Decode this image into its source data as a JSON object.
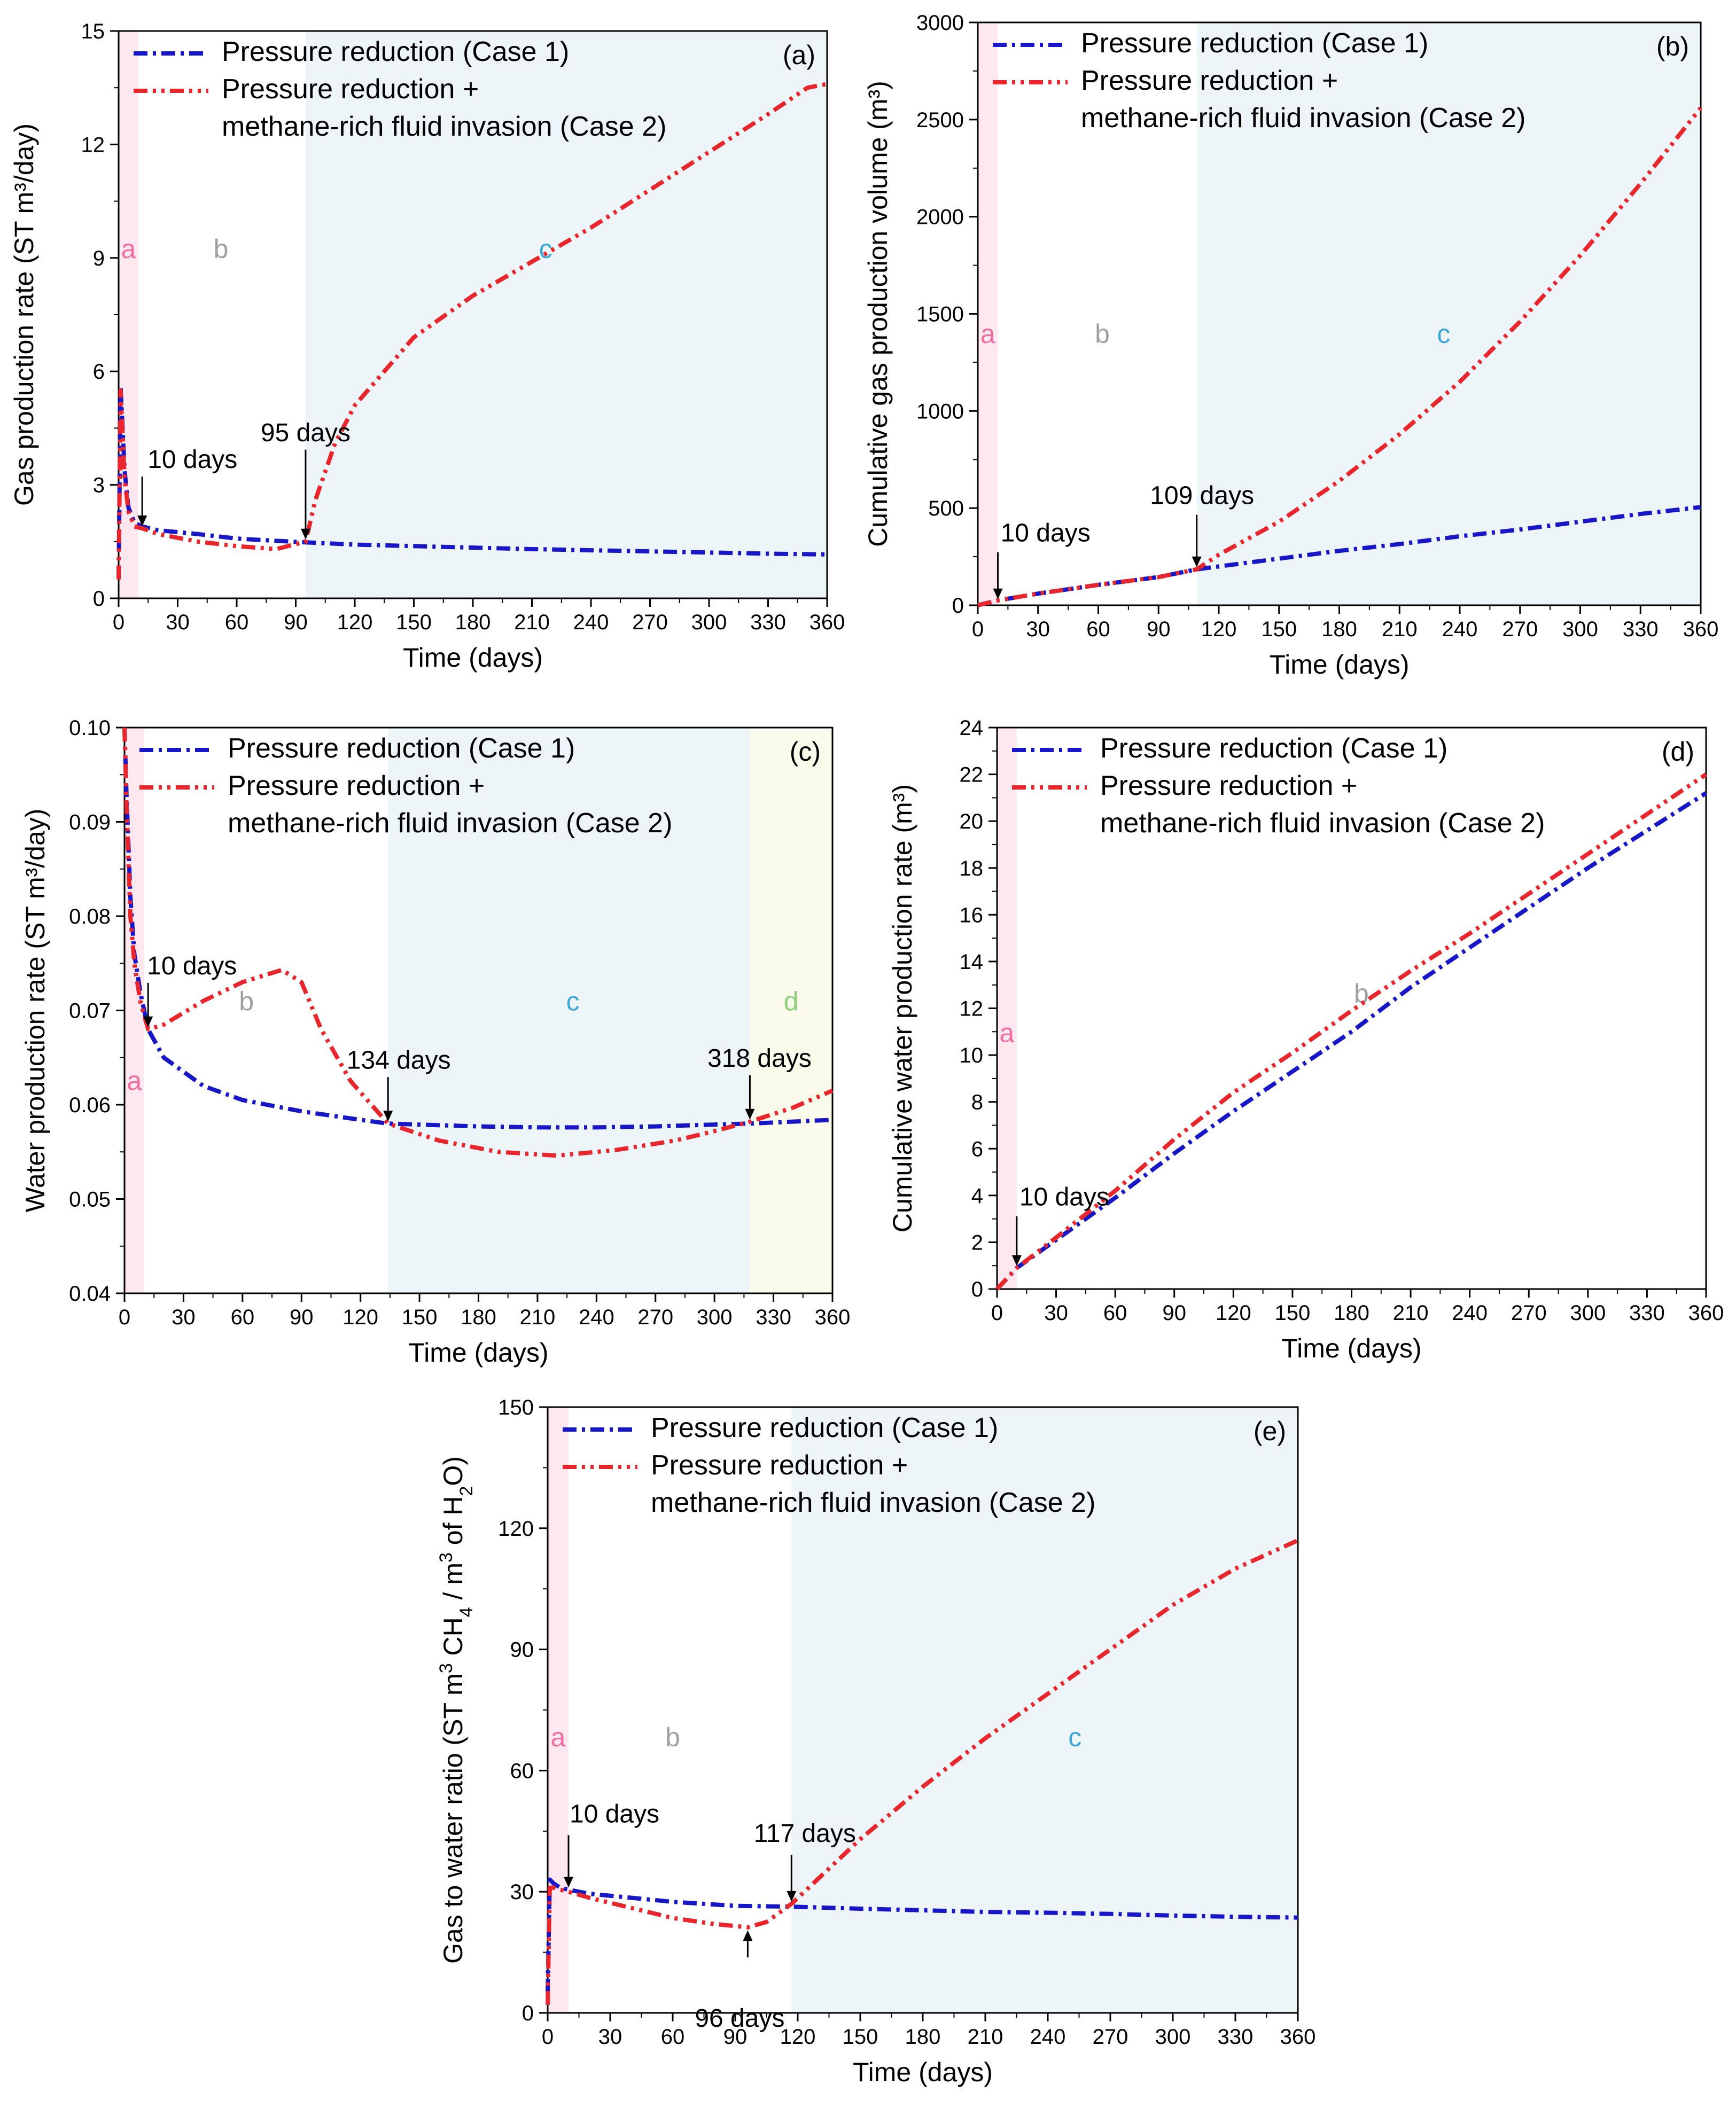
{
  "colors": {
    "case1": "#1717c8",
    "case2": "#e8262b",
    "region_a_fill": "#fde8f0",
    "region_c_fill": "#eef5f9",
    "region_d_fill": "#fbfbec",
    "region_a_text": "#f06ea0",
    "region_b_text": "#a0a0a0",
    "region_c_text": "#3fa7d8",
    "region_d_text": "#8bcf7a"
  },
  "legend": {
    "case1": "Pressure reduction (Case 1)",
    "case2_line1": "Pressure reduction +",
    "case2_line2": "methane-rich fluid invasion (Case 2)"
  },
  "chart_data": [
    {
      "id": "a",
      "type": "line",
      "panel_label": "(a)",
      "xlabel": "Time (days)",
      "ylabel": "Gas production rate (ST m³/day)",
      "xlim": [
        0,
        360
      ],
      "ylim": [
        0,
        15
      ],
      "xticks": [
        "0",
        "30",
        "60",
        "90",
        "120",
        "150",
        "180",
        "210",
        "240",
        "270",
        "300",
        "330",
        "360"
      ],
      "yticks": [
        "0",
        "3",
        "6",
        "9",
        "12",
        "15"
      ],
      "regions": [
        {
          "label": "a",
          "x0": 0,
          "x1": 10
        },
        {
          "label": "b",
          "x0": 10,
          "x1": 95
        },
        {
          "label": "c",
          "x0": 95,
          "x1": 360
        }
      ],
      "annotations": [
        {
          "text": "10 days",
          "x": 12,
          "y": 1.85
        },
        {
          "text": "95 days",
          "x": 95,
          "y": 1.5
        }
      ],
      "series": [
        {
          "name": "Pressure reduction (Case 1)",
          "x": [
            0,
            1,
            3,
            5,
            8,
            12,
            20,
            40,
            60,
            80,
            95,
            120,
            150,
            180,
            210,
            240,
            270,
            300,
            330,
            360
          ],
          "y": [
            0.5,
            5.6,
            3.4,
            2.4,
            2.0,
            1.9,
            1.8,
            1.7,
            1.58,
            1.52,
            1.48,
            1.42,
            1.38,
            1.34,
            1.3,
            1.27,
            1.24,
            1.21,
            1.18,
            1.16
          ]
        },
        {
          "name": "Pressure reduction + methane-rich fluid invasion (Case 2)",
          "x": [
            0,
            1,
            3,
            5,
            8,
            12,
            20,
            40,
            60,
            80,
            95,
            100,
            110,
            120,
            150,
            180,
            210,
            240,
            270,
            300,
            330,
            350,
            360
          ],
          "y": [
            0.5,
            5.5,
            3.2,
            2.3,
            1.9,
            1.85,
            1.7,
            1.5,
            1.38,
            1.3,
            1.5,
            2.6,
            4.1,
            5.1,
            6.9,
            8.0,
            8.9,
            9.8,
            10.8,
            11.8,
            12.8,
            13.5,
            13.6
          ]
        }
      ]
    },
    {
      "id": "b",
      "type": "line",
      "panel_label": "(b)",
      "xlabel": "Time (days)",
      "ylabel": "Cumulative gas production volume (m³)",
      "xlim": [
        0,
        360
      ],
      "ylim": [
        0,
        3000
      ],
      "xticks": [
        "0",
        "30",
        "60",
        "90",
        "120",
        "150",
        "180",
        "210",
        "240",
        "270",
        "300",
        "330",
        "360"
      ],
      "yticks": [
        "0",
        "500",
        "1000",
        "1500",
        "2000",
        "2500",
        "3000"
      ],
      "regions": [
        {
          "label": "a",
          "x0": 0,
          "x1": 10
        },
        {
          "label": "b",
          "x0": 10,
          "x1": 109
        },
        {
          "label": "c",
          "x0": 109,
          "x1": 360
        }
      ],
      "annotations": [
        {
          "text": "10 days",
          "x": 10,
          "y": 20
        },
        {
          "text": "109 days",
          "x": 109,
          "y": 185
        }
      ],
      "series": [
        {
          "name": "Pressure reduction (Case 1)",
          "x": [
            0,
            10,
            30,
            60,
            90,
            109,
            150,
            180,
            210,
            240,
            270,
            300,
            330,
            360
          ],
          "y": [
            0,
            25,
            60,
            105,
            145,
            185,
            240,
            280,
            315,
            355,
            390,
            430,
            470,
            505
          ]
        },
        {
          "name": "Pressure reduction + methane-rich fluid invasion (Case 2)",
          "x": [
            0,
            10,
            30,
            60,
            90,
            109,
            120,
            150,
            180,
            210,
            240,
            270,
            300,
            330,
            360
          ],
          "y": [
            0,
            25,
            60,
            105,
            145,
            185,
            260,
            430,
            640,
            880,
            1150,
            1460,
            1800,
            2170,
            2560
          ]
        }
      ]
    },
    {
      "id": "c",
      "type": "line",
      "panel_label": "(c)",
      "xlabel": "Time (days)",
      "ylabel": "Water production rate (ST m³/day)",
      "xlim": [
        0,
        360
      ],
      "ylim": [
        0.04,
        0.1
      ],
      "xticks": [
        "0",
        "30",
        "60",
        "90",
        "120",
        "150",
        "180",
        "210",
        "240",
        "270",
        "300",
        "330",
        "360"
      ],
      "yticks": [
        "0.04",
        "0.05",
        "0.06",
        "0.07",
        "0.08",
        "0.09",
        "0.10"
      ],
      "regions": [
        {
          "label": "a",
          "x0": 0,
          "x1": 10
        },
        {
          "label": "b",
          "x0": 10,
          "x1": 134
        },
        {
          "label": "c",
          "x0": 134,
          "x1": 318
        },
        {
          "label": "d",
          "x0": 318,
          "x1": 360
        }
      ],
      "annotations": [
        {
          "text": "10 days",
          "x": 12,
          "y": 0.068
        },
        {
          "text": "134 days",
          "x": 134,
          "y": 0.058
        },
        {
          "text": "318 days",
          "x": 318,
          "y": 0.0582
        }
      ],
      "series": [
        {
          "name": "Pressure reduction (Case 1)",
          "x": [
            0,
            1,
            3,
            5,
            8,
            12,
            20,
            40,
            60,
            90,
            120,
            134,
            180,
            210,
            240,
            270,
            300,
            318,
            360
          ],
          "y": [
            0.1,
            0.093,
            0.082,
            0.076,
            0.072,
            0.068,
            0.065,
            0.062,
            0.0605,
            0.0593,
            0.0584,
            0.058,
            0.0577,
            0.0576,
            0.0576,
            0.0577,
            0.0579,
            0.058,
            0.0584
          ]
        },
        {
          "name": "Pressure reduction + methane-rich fluid invasion (Case 2)",
          "x": [
            0,
            1,
            3,
            5,
            8,
            12,
            20,
            40,
            60,
            80,
            90,
            100,
            115,
            134,
            160,
            190,
            220,
            250,
            280,
            300,
            318,
            340,
            360
          ],
          "y": [
            0.1,
            0.092,
            0.08,
            0.075,
            0.071,
            0.068,
            0.0685,
            0.071,
            0.073,
            0.0743,
            0.073,
            0.068,
            0.0625,
            0.058,
            0.0562,
            0.055,
            0.0546,
            0.0552,
            0.0562,
            0.0572,
            0.0582,
            0.0597,
            0.0615
          ]
        }
      ]
    },
    {
      "id": "d",
      "type": "line",
      "panel_label": "(d)",
      "xlabel": "Time (days)",
      "ylabel": "Cumulative water production rate (m³)",
      "xlim": [
        0,
        360
      ],
      "ylim": [
        0,
        24
      ],
      "xticks": [
        "0",
        "30",
        "60",
        "90",
        "120",
        "150",
        "180",
        "210",
        "240",
        "270",
        "300",
        "330",
        "360"
      ],
      "yticks": [
        "0",
        "2",
        "4",
        "6",
        "8",
        "10",
        "12",
        "14",
        "16",
        "18",
        "20",
        "22",
        "24"
      ],
      "regions": [
        {
          "label": "a",
          "x0": 0,
          "x1": 10
        },
        {
          "label": "b",
          "x0": 10,
          "x1": 360
        }
      ],
      "annotations": [
        {
          "text": "10 days",
          "x": 10,
          "y": 0.9
        }
      ],
      "series": [
        {
          "name": "Pressure reduction (Case 1)",
          "x": [
            0,
            10,
            30,
            60,
            90,
            120,
            150,
            180,
            210,
            240,
            270,
            300,
            330,
            360
          ],
          "y": [
            0,
            0.9,
            2.1,
            3.9,
            5.8,
            7.6,
            9.3,
            11.0,
            12.9,
            14.6,
            16.3,
            18.0,
            19.6,
            21.2
          ]
        },
        {
          "name": "Pressure reduction + methane-rich fluid invasion (Case 2)",
          "x": [
            0,
            10,
            30,
            60,
            90,
            120,
            150,
            180,
            210,
            240,
            270,
            300,
            330,
            360
          ],
          "y": [
            0,
            0.9,
            2.2,
            4.2,
            6.4,
            8.4,
            10.1,
            11.9,
            13.6,
            15.2,
            16.9,
            18.6,
            20.3,
            22.0
          ]
        }
      ]
    },
    {
      "id": "e",
      "type": "line",
      "panel_label": "(e)",
      "xlabel": "Time (days)",
      "ylabel_parts": [
        "Gas to water ratio (ST m",
        "3",
        " CH",
        "4",
        " / m",
        "3",
        " of H",
        "2",
        "O)"
      ],
      "xlim": [
        0,
        360
      ],
      "ylim": [
        0,
        150
      ],
      "xticks": [
        "0",
        "30",
        "60",
        "90",
        "120",
        "150",
        "180",
        "210",
        "240",
        "270",
        "300",
        "330",
        "360"
      ],
      "yticks": [
        "0",
        "30",
        "60",
        "90",
        "120",
        "150"
      ],
      "regions": [
        {
          "label": "a",
          "x0": 0,
          "x1": 10
        },
        {
          "label": "b",
          "x0": 10,
          "x1": 117
        },
        {
          "label": "c",
          "x0": 117,
          "x1": 360
        }
      ],
      "annotations": [
        {
          "text": "10 days",
          "x": 10,
          "y": 30.5
        },
        {
          "text": "117 days",
          "x": 117,
          "y": 27
        },
        {
          "text": "96 days",
          "x": 96,
          "y": 21
        }
      ],
      "series": [
        {
          "name": "Pressure reduction (Case 1)",
          "x": [
            0,
            1,
            3,
            6,
            10,
            20,
            40,
            60,
            90,
            117,
            150,
            180,
            210,
            240,
            270,
            300,
            330,
            360
          ],
          "y": [
            5,
            33,
            32,
            31,
            30.5,
            29.5,
            28.5,
            27.5,
            26.5,
            26.3,
            25.8,
            25.4,
            25.0,
            24.8,
            24.5,
            24.1,
            23.8,
            23.6
          ]
        },
        {
          "name": "Pressure reduction + methane-rich fluid invasion (Case 2)",
          "x": [
            0,
            1,
            3,
            6,
            10,
            20,
            40,
            60,
            80,
            96,
            105,
            117,
            150,
            180,
            210,
            240,
            270,
            300,
            330,
            360
          ],
          "y": [
            2,
            31,
            31,
            30.5,
            30,
            28.5,
            26,
            23.5,
            22,
            21.2,
            22.5,
            27,
            43,
            56,
            68,
            79,
            90,
            101,
            110,
            117
          ]
        }
      ]
    }
  ]
}
